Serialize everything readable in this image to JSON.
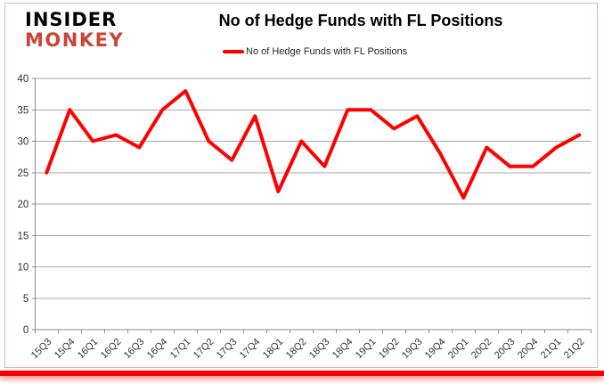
{
  "logo": {
    "line1": "INSIDER",
    "line2": "MONKEY",
    "line2_color": "#cb4437"
  },
  "title": "No of Hedge Funds with FL Positions",
  "legend": {
    "label": "No of Hedge Funds with FL Positions",
    "swatch_color": "#ff0000"
  },
  "accent_bar_color": "#fa0000",
  "chart_data": {
    "type": "line",
    "title": "No of Hedge Funds with FL Positions",
    "categories": [
      "15Q3",
      "15Q4",
      "16Q1",
      "16Q2",
      "16Q3",
      "16Q4",
      "17Q1",
      "17Q2",
      "17Q3",
      "17Q4",
      "18Q1",
      "18Q2",
      "18Q3",
      "18Q4",
      "19Q1",
      "19Q2",
      "19Q3",
      "19Q4",
      "20Q1",
      "20Q2",
      "20Q3",
      "20Q4",
      "21Q1",
      "21Q2"
    ],
    "values": [
      25,
      35,
      30,
      31,
      29,
      35,
      38,
      30,
      27,
      34,
      22,
      30,
      26,
      35,
      35,
      32,
      34,
      28,
      21,
      29,
      26,
      26,
      29,
      31
    ],
    "ylim": [
      0,
      40
    ],
    "ytick_step": 5,
    "grid": true,
    "legend_position": "top",
    "line_color": "#ff0000",
    "grid_color": "#a6a6a6",
    "axis_color": "#8c8c8c",
    "label_color": "#333333"
  }
}
